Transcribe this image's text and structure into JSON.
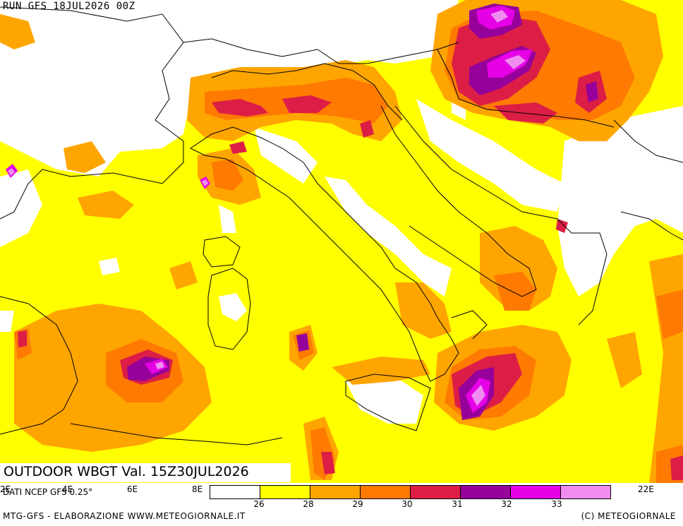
{
  "run_label": "RUN GFS 18JUL2026 00Z",
  "title": "OUTDOOR WBGT Val. 15Z30JUL2026",
  "source": "DATI NCEP GFS 0.25°",
  "longitudes": [
    "2E",
    "4E",
    "6E",
    "8E",
    "22E"
  ],
  "legend": {
    "colors": [
      "#ffffff",
      "#ffff00",
      "#ffa500",
      "#ff7a00",
      "#dc1e46",
      "#96009b",
      "#e600e6",
      "#f08cf0"
    ],
    "ticks": [
      "26",
      "28",
      "29",
      "30",
      "31",
      "32",
      "33"
    ]
  },
  "footer": {
    "left": "MTG-GFS - ELABORAZIONE WWW.METEOGIORNALE.IT",
    "right": "(C) METEOGIORNALE"
  }
}
